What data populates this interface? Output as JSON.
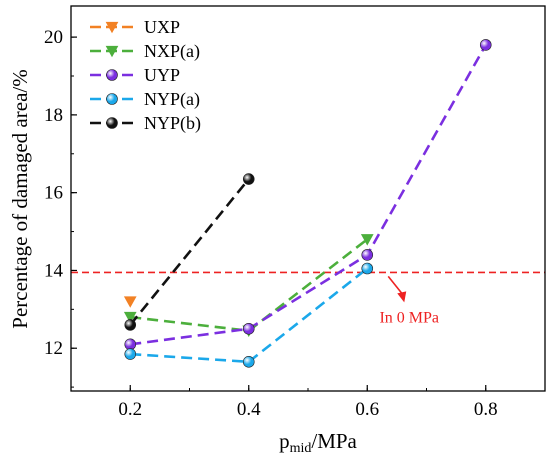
{
  "chart_data": {
    "type": "line",
    "xlabel_main": "p",
    "xlabel_sub": "mid",
    "xlabel_unit": "/MPa",
    "ylabel": "Percentage of damaged area/%",
    "xlim": [
      0.1,
      0.9
    ],
    "ylim": [
      10.9,
      20.8
    ],
    "xticks": [
      "0.2",
      "0.4",
      "0.6",
      "0.8"
    ],
    "yticks": [
      "12",
      "14",
      "16",
      "18",
      "20"
    ],
    "grid": false,
    "legend_position": "top-left",
    "series": [
      {
        "name": "UXP",
        "color": "#f28124",
        "marker": "triangle-down",
        "x": [
          0.2
        ],
        "y": [
          13.2
        ]
      },
      {
        "name": "NXP(a)",
        "color": "#4caf3c",
        "marker": "triangle-down",
        "x": [
          0.2,
          0.4,
          0.6
        ],
        "y": [
          12.8,
          12.45,
          14.8
        ]
      },
      {
        "name": "UYP",
        "color": "#7b2fe0",
        "marker": "circle",
        "x": [
          0.2,
          0.4,
          0.6,
          0.8
        ],
        "y": [
          12.1,
          12.5,
          14.4,
          19.8
        ]
      },
      {
        "name": "NYP(a)",
        "color": "#1ba8ea",
        "marker": "circle",
        "x": [
          0.2,
          0.4,
          0.6
        ],
        "y": [
          11.85,
          11.65,
          14.05
        ]
      },
      {
        "name": "NYP(b)",
        "color": "#111111",
        "marker": "circle",
        "x": [
          0.2,
          0.4
        ],
        "y": [
          12.6,
          16.35
        ]
      }
    ],
    "reference_line": {
      "y": 13.95,
      "color": "#ee2222",
      "label": "In 0 MPa"
    }
  }
}
